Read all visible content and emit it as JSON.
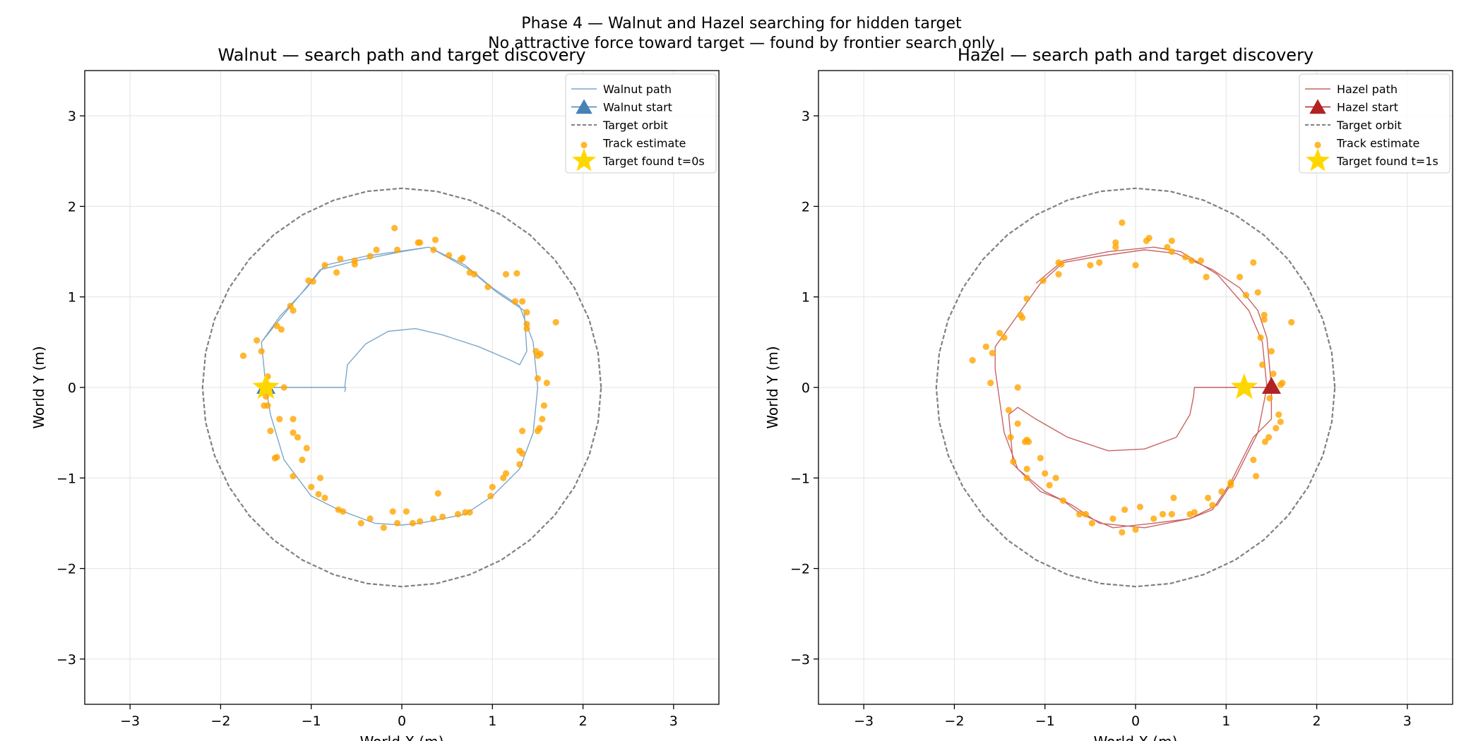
{
  "figure": {
    "suptitle_line1": "Phase 4 — Walnut and Hazel searching for hidden target",
    "suptitle_line2": "No attractive force toward target — found by frontier search only"
  },
  "chart_data": [
    {
      "type": "line",
      "id": "walnut",
      "title": "Walnut — search path and target discovery",
      "xlabel": "World X (m)",
      "ylabel": "World Y (m)",
      "xlim": [
        -3.5,
        3.5
      ],
      "ylim": [
        -3.5,
        3.5
      ],
      "xticks": [
        -3,
        -2,
        -1,
        0,
        1,
        2,
        3
      ],
      "yticks": [
        -3,
        -2,
        -1,
        0,
        1,
        2,
        3
      ],
      "grid": true,
      "legend_position": "top-right",
      "colors": {
        "path": "#4682b4",
        "orbit": "#808080",
        "track": "#ffa500",
        "star": "#ffd700"
      },
      "legend": [
        "Walnut path",
        "Walnut start",
        "Target orbit",
        "Track estimate",
        "Target found t=0s"
      ],
      "orbit_radius": 2.2,
      "start": [
        -1.5,
        0.0
      ],
      "target_found": [
        -1.5,
        0.0
      ],
      "path": [
        [
          -0.63,
          -0.05
        ],
        [
          -0.62,
          0.0
        ],
        [
          -1.5,
          0.0
        ],
        [
          -1.55,
          0.5
        ],
        [
          -1.35,
          0.75
        ],
        [
          -1.1,
          1.05
        ],
        [
          -0.9,
          1.3
        ],
        [
          -0.5,
          1.4
        ],
        [
          0.0,
          1.5
        ],
        [
          0.3,
          1.55
        ],
        [
          0.7,
          1.35
        ],
        [
          1.0,
          1.1
        ],
        [
          1.3,
          0.9
        ],
        [
          1.45,
          0.5
        ],
        [
          1.5,
          0.0
        ],
        [
          1.45,
          -0.5
        ],
        [
          1.3,
          -0.9
        ],
        [
          1.0,
          -1.2
        ],
        [
          0.7,
          -1.4
        ],
        [
          0.2,
          -1.5
        ],
        [
          0.0,
          -1.52
        ],
        [
          -0.3,
          -1.5
        ],
        [
          -0.7,
          -1.35
        ],
        [
          -1.0,
          -1.2
        ],
        [
          -1.3,
          -0.8
        ],
        [
          -1.45,
          -0.3
        ],
        [
          -1.5,
          0.0
        ],
        [
          -1.55,
          0.5
        ],
        [
          -1.35,
          0.78
        ],
        [
          -1.05,
          1.1
        ],
        [
          -0.85,
          1.35
        ],
        [
          -0.4,
          1.45
        ],
        [
          0.3,
          1.55
        ],
        [
          0.75,
          1.3
        ],
        [
          1.05,
          1.05
        ],
        [
          1.35,
          0.85
        ],
        [
          1.38,
          0.4
        ],
        [
          1.3,
          0.25
        ],
        [
          1.2,
          0.3
        ],
        [
          0.85,
          0.45
        ],
        [
          0.45,
          0.58
        ],
        [
          0.15,
          0.65
        ],
        [
          -0.15,
          0.62
        ],
        [
          -0.4,
          0.48
        ],
        [
          -0.6,
          0.25
        ],
        [
          -0.63,
          0.0
        ]
      ],
      "track_estimates": [
        [
          -1.75,
          0.35
        ],
        [
          -1.6,
          0.52
        ],
        [
          -1.55,
          0.4
        ],
        [
          -1.48,
          0.12
        ],
        [
          -1.38,
          0.68
        ],
        [
          -1.33,
          0.64
        ],
        [
          -1.2,
          0.85
        ],
        [
          -1.23,
          0.9
        ],
        [
          -1.03,
          1.18
        ],
        [
          -0.98,
          1.17
        ],
        [
          -0.85,
          1.35
        ],
        [
          -0.72,
          1.27
        ],
        [
          -0.68,
          1.42
        ],
        [
          -0.52,
          1.4
        ],
        [
          -0.52,
          1.36
        ],
        [
          -0.35,
          1.45
        ],
        [
          -0.28,
          1.52
        ],
        [
          -0.08,
          1.76
        ],
        [
          -0.05,
          1.52
        ],
        [
          0.18,
          1.6
        ],
        [
          0.2,
          1.6
        ],
        [
          0.35,
          1.52
        ],
        [
          0.37,
          1.63
        ],
        [
          0.52,
          1.46
        ],
        [
          0.65,
          1.41
        ],
        [
          0.67,
          1.43
        ],
        [
          0.75,
          1.27
        ],
        [
          0.8,
          1.25
        ],
        [
          0.95,
          1.11
        ],
        [
          1.15,
          1.25
        ],
        [
          1.27,
          1.26
        ],
        [
          1.25,
          0.95
        ],
        [
          1.33,
          0.95
        ],
        [
          1.38,
          0.83
        ],
        [
          1.38,
          0.7
        ],
        [
          1.38,
          0.65
        ],
        [
          1.7,
          0.72
        ],
        [
          1.48,
          0.4
        ],
        [
          1.5,
          0.35
        ],
        [
          1.53,
          0.37
        ],
        [
          1.5,
          0.1
        ],
        [
          1.6,
          0.05
        ],
        [
          1.57,
          -0.2
        ],
        [
          1.55,
          -0.35
        ],
        [
          1.52,
          -0.45
        ],
        [
          1.5,
          -0.48
        ],
        [
          1.33,
          -0.48
        ],
        [
          1.3,
          -0.7
        ],
        [
          1.33,
          -0.73
        ],
        [
          1.3,
          -0.85
        ],
        [
          1.15,
          -0.95
        ],
        [
          1.12,
          -1.0
        ],
        [
          1.0,
          -1.1
        ],
        [
          0.98,
          -1.2
        ],
        [
          0.75,
          -1.38
        ],
        [
          0.7,
          -1.38
        ],
        [
          0.62,
          -1.4
        ],
        [
          0.4,
          -1.17
        ],
        [
          0.45,
          -1.43
        ],
        [
          0.35,
          -1.45
        ],
        [
          0.2,
          -1.48
        ],
        [
          0.12,
          -1.5
        ],
        [
          0.05,
          -1.37
        ],
        [
          -0.05,
          -1.5
        ],
        [
          -0.2,
          -1.55
        ],
        [
          -0.1,
          -1.37
        ],
        [
          -0.35,
          -1.45
        ],
        [
          -0.45,
          -1.5
        ],
        [
          -0.7,
          -1.35
        ],
        [
          -0.65,
          -1.37
        ],
        [
          -0.85,
          -1.22
        ],
        [
          -0.92,
          -1.18
        ],
        [
          -0.9,
          -1.0
        ],
        [
          -1.0,
          -1.1
        ],
        [
          -1.05,
          -0.67
        ],
        [
          -1.15,
          -0.55
        ],
        [
          -1.2,
          -0.5
        ],
        [
          -1.1,
          -0.8
        ],
        [
          -1.2,
          -0.98
        ],
        [
          -1.2,
          -0.35
        ],
        [
          -1.35,
          -0.35
        ],
        [
          -1.48,
          -0.2
        ],
        [
          -1.45,
          -0.48
        ],
        [
          -1.38,
          -0.77
        ],
        [
          -1.4,
          -0.78
        ],
        [
          -1.5,
          -0.1
        ],
        [
          -1.52,
          -0.2
        ],
        [
          -1.3,
          0.0
        ]
      ]
    },
    {
      "type": "line",
      "id": "hazel",
      "title": "Hazel — search path and target discovery",
      "xlabel": "World X (m)",
      "ylabel": "World Y (m)",
      "xlim": [
        -3.5,
        3.5
      ],
      "ylim": [
        -3.5,
        3.5
      ],
      "xticks": [
        -3,
        -2,
        -1,
        0,
        1,
        2,
        3
      ],
      "yticks": [
        -3,
        -2,
        -1,
        0,
        1,
        2,
        3
      ],
      "grid": true,
      "legend_position": "top-right",
      "colors": {
        "path": "#b22222",
        "orbit": "#808080",
        "track": "#ffa500",
        "star": "#ffd700"
      },
      "legend": [
        "Hazel path",
        "Hazel start",
        "Target orbit",
        "Track estimate",
        "Target found t=1s"
      ],
      "orbit_radius": 2.2,
      "start": [
        1.5,
        0.0
      ],
      "target_found": [
        1.2,
        0.0
      ],
      "path": [
        [
          1.5,
          0.0
        ],
        [
          0.65,
          0.0
        ],
        [
          0.64,
          -0.1
        ],
        [
          0.6,
          -0.3
        ],
        [
          0.45,
          -0.55
        ],
        [
          0.1,
          -0.68
        ],
        [
          -0.3,
          -0.7
        ],
        [
          -0.75,
          -0.55
        ],
        [
          -1.1,
          -0.35
        ],
        [
          -1.3,
          -0.22
        ],
        [
          -1.4,
          -0.3
        ],
        [
          -1.35,
          -0.85
        ],
        [
          -1.05,
          -1.15
        ],
        [
          -0.8,
          -1.25
        ],
        [
          -0.6,
          -1.4
        ],
        [
          -0.25,
          -1.55
        ],
        [
          0.2,
          -1.5
        ],
        [
          0.6,
          -1.45
        ],
        [
          0.85,
          -1.35
        ],
        [
          1.05,
          -1.05
        ],
        [
          1.3,
          -0.55
        ],
        [
          1.5,
          -0.35
        ],
        [
          1.5,
          0.0
        ],
        [
          1.45,
          0.55
        ],
        [
          1.35,
          0.85
        ],
        [
          1.15,
          1.1
        ],
        [
          0.85,
          1.3
        ],
        [
          0.45,
          1.48
        ],
        [
          0.1,
          1.52
        ],
        [
          -0.4,
          1.45
        ],
        [
          -0.8,
          1.38
        ],
        [
          -1.05,
          1.15
        ],
        [
          -1.3,
          0.8
        ],
        [
          -1.55,
          0.45
        ],
        [
          -1.55,
          0.2
        ],
        [
          -1.45,
          -0.5
        ],
        [
          -1.3,
          -0.9
        ],
        [
          -1.0,
          -1.15
        ],
        [
          -0.7,
          -1.3
        ],
        [
          -0.4,
          -1.5
        ],
        [
          0.1,
          -1.55
        ],
        [
          0.6,
          -1.45
        ],
        [
          0.9,
          -1.3
        ],
        [
          1.1,
          -1.0
        ],
        [
          1.35,
          -0.5
        ],
        [
          1.45,
          0.0
        ],
        [
          1.4,
          0.5
        ],
        [
          1.25,
          0.85
        ],
        [
          0.9,
          1.25
        ],
        [
          0.5,
          1.5
        ],
        [
          0.2,
          1.55
        ],
        [
          -0.3,
          1.5
        ],
        [
          -0.8,
          1.4
        ],
        [
          -1.1,
          1.15
        ]
      ],
      "track_estimates": [
        [
          -1.8,
          0.3
        ],
        [
          -1.65,
          0.45
        ],
        [
          -1.58,
          0.38
        ],
        [
          -1.6,
          0.05
        ],
        [
          -1.5,
          0.6
        ],
        [
          -1.45,
          0.55
        ],
        [
          -1.27,
          0.8
        ],
        [
          -1.25,
          0.77
        ],
        [
          -1.2,
          0.98
        ],
        [
          -1.02,
          1.18
        ],
        [
          -0.85,
          1.38
        ],
        [
          -0.85,
          1.25
        ],
        [
          -0.82,
          1.36
        ],
        [
          -0.5,
          1.35
        ],
        [
          -0.4,
          1.38
        ],
        [
          -0.22,
          1.6
        ],
        [
          -0.22,
          1.55
        ],
        [
          -0.15,
          1.82
        ],
        [
          0.0,
          1.35
        ],
        [
          0.12,
          1.62
        ],
        [
          0.15,
          1.65
        ],
        [
          0.35,
          1.55
        ],
        [
          0.4,
          1.62
        ],
        [
          0.4,
          1.5
        ],
        [
          0.55,
          1.44
        ],
        [
          0.62,
          1.4
        ],
        [
          0.72,
          1.4
        ],
        [
          0.78,
          1.22
        ],
        [
          1.15,
          1.22
        ],
        [
          1.3,
          1.38
        ],
        [
          1.22,
          1.02
        ],
        [
          1.35,
          1.05
        ],
        [
          1.42,
          0.8
        ],
        [
          1.42,
          0.75
        ],
        [
          1.38,
          0.55
        ],
        [
          1.4,
          0.25
        ],
        [
          1.72,
          0.72
        ],
        [
          1.5,
          0.4
        ],
        [
          1.52,
          0.15
        ],
        [
          1.48,
          -0.12
        ],
        [
          1.6,
          0.03
        ],
        [
          1.62,
          0.05
        ],
        [
          1.58,
          -0.3
        ],
        [
          1.6,
          -0.38
        ],
        [
          1.55,
          -0.45
        ],
        [
          1.47,
          -0.55
        ],
        [
          1.43,
          -0.6
        ],
        [
          1.3,
          -0.8
        ],
        [
          1.33,
          -0.98
        ],
        [
          1.05,
          -1.05
        ],
        [
          1.05,
          -1.08
        ],
        [
          0.95,
          -1.15
        ],
        [
          0.85,
          -1.3
        ],
        [
          0.8,
          -1.22
        ],
        [
          0.65,
          -1.38
        ],
        [
          0.6,
          -1.4
        ],
        [
          0.42,
          -1.22
        ],
        [
          0.4,
          -1.4
        ],
        [
          0.3,
          -1.4
        ],
        [
          0.2,
          -1.45
        ],
        [
          0.05,
          -1.32
        ],
        [
          0.0,
          -1.57
        ],
        [
          -0.12,
          -1.35
        ],
        [
          -0.15,
          -1.6
        ],
        [
          -0.25,
          -1.45
        ],
        [
          -0.48,
          -1.5
        ],
        [
          -0.55,
          -1.4
        ],
        [
          -0.62,
          -1.4
        ],
        [
          -0.8,
          -1.25
        ],
        [
          -0.95,
          -1.08
        ],
        [
          -1.0,
          -0.95
        ],
        [
          -0.88,
          -1.0
        ],
        [
          -1.2,
          -1.0
        ],
        [
          -1.22,
          -0.6
        ],
        [
          -1.18,
          -0.6
        ],
        [
          -1.2,
          -0.58
        ],
        [
          -1.2,
          -0.9
        ],
        [
          -1.3,
          -0.4
        ],
        [
          -1.3,
          0.0
        ],
        [
          -1.4,
          -0.25
        ],
        [
          -1.38,
          -0.55
        ],
        [
          -1.35,
          -0.82
        ],
        [
          -1.05,
          -0.78
        ]
      ]
    }
  ]
}
